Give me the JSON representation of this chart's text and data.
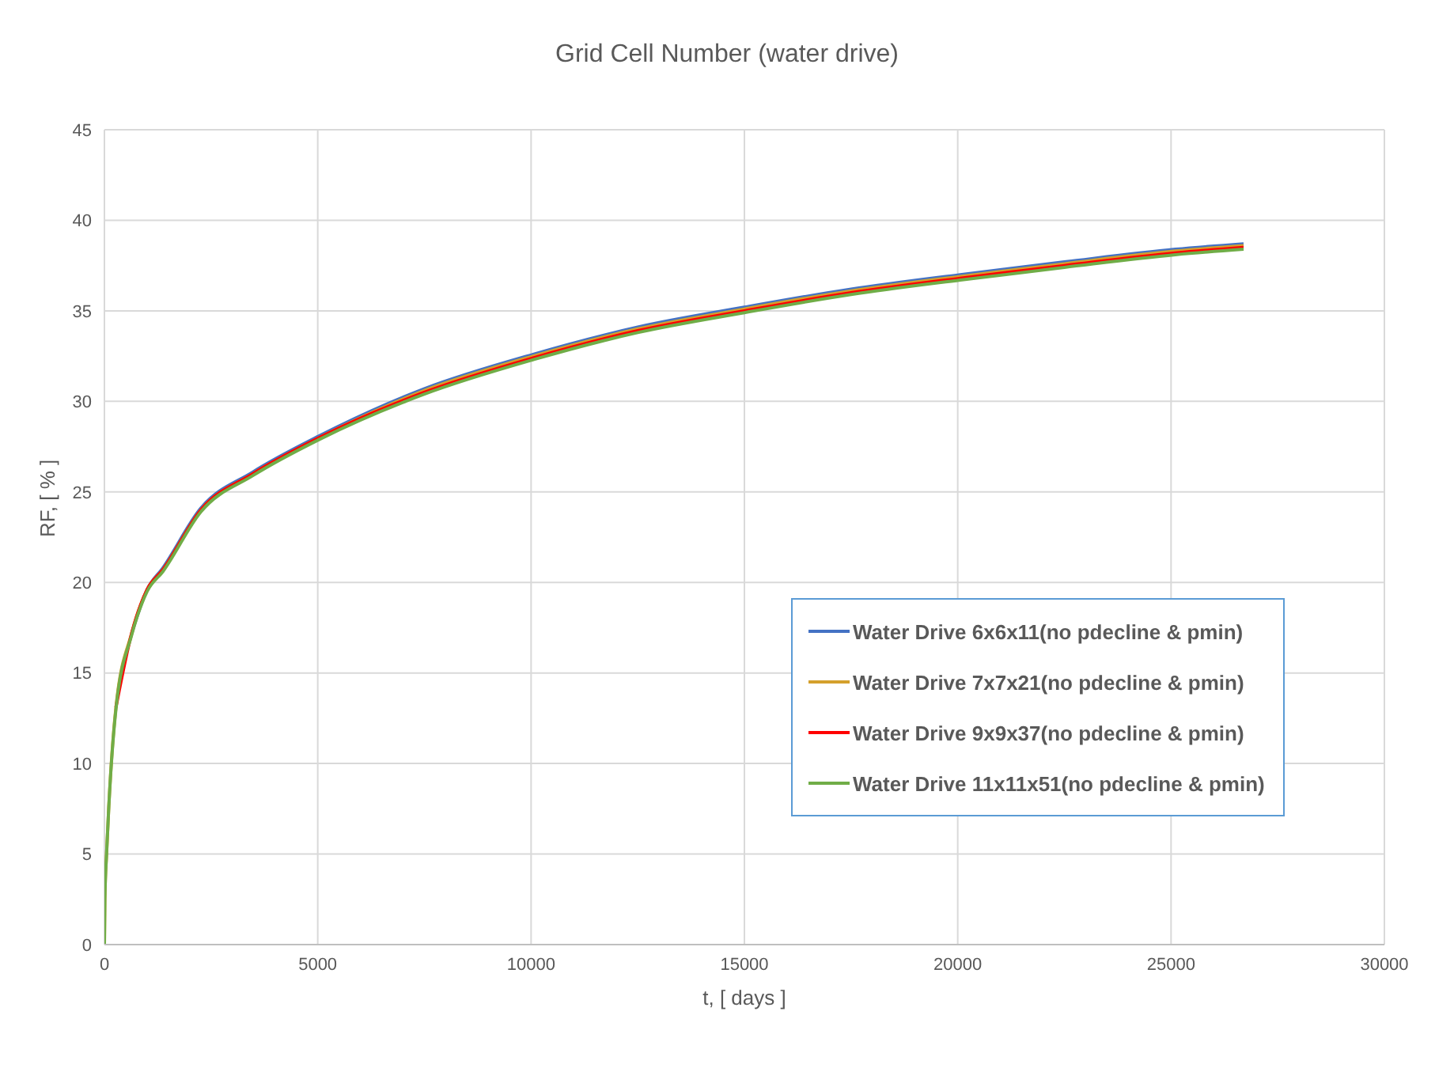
{
  "chart_data": {
    "type": "line",
    "title": "Grid Cell Number (water drive)",
    "xlabel": "t, [ days ]",
    "ylabel": "RF, [ % ]",
    "x": [
      0,
      10,
      50,
      100,
      270,
      640,
      1000,
      1370,
      2260,
      3480,
      5040,
      7500,
      10050,
      12500,
      15000,
      17500,
      20060,
      22500,
      25100,
      26700
    ],
    "series": [
      {
        "name": "Water Drive 6x6x11(no pdecline & pmin)",
        "color": "#4472c4",
        "values": [
          null,
          null,
          null,
          null,
          null,
          17.2,
          19.6,
          20.8,
          24.1,
          26.1,
          28.1,
          30.7,
          32.6,
          34.1,
          35.2,
          36.2,
          37.0,
          37.7,
          38.4,
          38.7
        ]
      },
      {
        "name": "Water Drive 7x7x21(no pdecline & pmin)",
        "color": "#d4a02c",
        "values": [
          0,
          2.5,
          5,
          7.5,
          13.1,
          17.2,
          19.6,
          20.7,
          24.0,
          26.0,
          28.0,
          30.6,
          32.5,
          34.0,
          35.1,
          36.1,
          36.9,
          37.6,
          38.3,
          38.6
        ]
      },
      {
        "name": "Water Drive 9x9x37(no pdecline & pmin)",
        "color": "#ff0000",
        "values": [
          null,
          null,
          null,
          null,
          13.1,
          17.2,
          19.6,
          20.7,
          24.0,
          26.0,
          28.0,
          30.5,
          32.4,
          33.9,
          35.0,
          36.0,
          36.8,
          37.5,
          38.2,
          38.5
        ]
      },
      {
        "name": "Water Drive 11x11x51(no pdecline & pmin)",
        "color": "#70ad47",
        "values": [
          0,
          2.5,
          5,
          7.5,
          13.0,
          17.1,
          19.5,
          20.6,
          23.9,
          25.9,
          27.9,
          30.4,
          32.3,
          33.8,
          34.9,
          35.9,
          36.7,
          37.4,
          38.1,
          38.4
        ]
      }
    ],
    "xlim": [
      0,
      30000
    ],
    "xticks": [
      0,
      5000,
      10000,
      15000,
      20000,
      25000,
      30000
    ],
    "ylim": [
      0,
      45
    ],
    "yticks": [
      0,
      5,
      10,
      15,
      20,
      25,
      30,
      35,
      40,
      45
    ],
    "grid": true,
    "legend": "bottom right",
    "marker": "none",
    "line_style": "solid"
  }
}
